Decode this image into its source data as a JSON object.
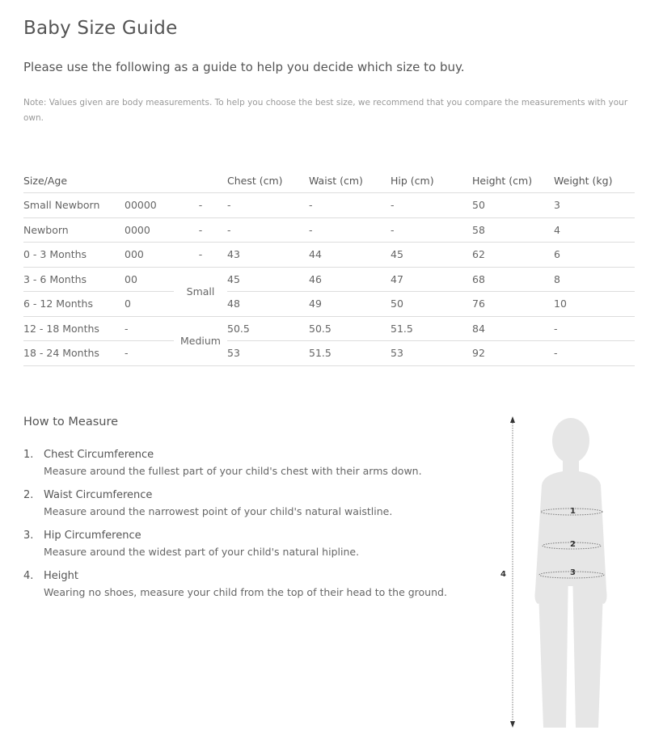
{
  "title": "Baby Size Guide",
  "intro": "Please use the following as a guide to help you decide which size to buy.",
  "note": "Note: Values given are body measurements. To help you choose the best size, we recommend that you compare the measurements with your own.",
  "table": {
    "headers": [
      "Size/Age",
      "",
      "",
      "Chest (cm)",
      "Waist (cm)",
      "Hip (cm)",
      "Height (cm)",
      "Weight (kg)"
    ],
    "rows": [
      [
        "Small Newborn",
        "00000",
        "-",
        "-",
        "-",
        "-",
        "50",
        "3"
      ],
      [
        "Newborn",
        "0000",
        "-",
        "-",
        "-",
        "-",
        "58",
        "4"
      ],
      [
        "0 - 3 Months",
        "000",
        "-",
        "43",
        "44",
        "45",
        "62",
        "6"
      ],
      [
        "3 - 6 Months",
        "00",
        "Small",
        "45",
        "46",
        "47",
        "68",
        "8"
      ],
      [
        "6 - 12 Months",
        "0",
        "",
        "48",
        "49",
        "50",
        "76",
        "10"
      ],
      [
        "12 - 18 Months",
        "-",
        "Medium",
        "50.5",
        "50.5",
        "51.5",
        "84",
        "-"
      ],
      [
        "18 - 24 Months",
        "-",
        "",
        "53",
        "51.5",
        "53",
        "92",
        "-"
      ]
    ]
  },
  "measure": {
    "heading": "How to Measure",
    "items": [
      {
        "num": "1.",
        "title": "Chest Circumference",
        "desc": "Measure around the fullest part of your child's chest with their arms down."
      },
      {
        "num": "2.",
        "title": "Waist Circumference",
        "desc": "Measure around the narrowest point of your child's natural waistline."
      },
      {
        "num": "3.",
        "title": "Hip Circumference",
        "desc": "Measure around the widest part of your child's natural hipline."
      },
      {
        "num": "4.",
        "title": "Height",
        "desc": "Wearing no shoes, measure your child from the top of their head to the ground."
      }
    ],
    "figure_labels": [
      "1",
      "2",
      "3",
      "4"
    ]
  }
}
